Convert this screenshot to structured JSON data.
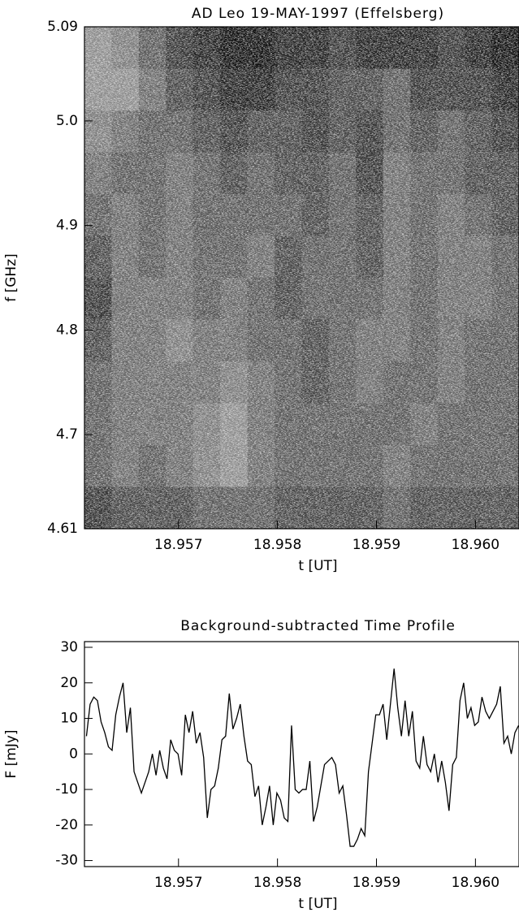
{
  "chart_data": [
    {
      "type": "heatmap",
      "title": "AD Leo 19-MAY-1997 (Effelsberg)",
      "x_label": "t [UT]",
      "y_label": "f [GHz]",
      "xlim": [
        18.95605,
        18.96044
      ],
      "xticks": [
        18.957,
        18.958,
        18.959,
        {
          "value": 18.96,
          "label": "18.960"
        }
      ],
      "ylim": [
        4.61,
        5.09
      ],
      "yticks": [
        4.61,
        4.7,
        4.8,
        4.9,
        {
          "value": 5.0,
          "label": "5.0"
        },
        5.09
      ],
      "z": [
        [
          8,
          7,
          5,
          3,
          2,
          1,
          1,
          2,
          2,
          3,
          2,
          2,
          2,
          3,
          2,
          1
        ],
        [
          8,
          8,
          6,
          4,
          3,
          2,
          2,
          3,
          3,
          4,
          4,
          5,
          3,
          3,
          3,
          2
        ],
        [
          7,
          6,
          5,
          5,
          4,
          3,
          4,
          4,
          3,
          4,
          3,
          5,
          4,
          5,
          4,
          3
        ],
        [
          6,
          5,
          5,
          6,
          5,
          4,
          5,
          4,
          4,
          5,
          3,
          6,
          5,
          5,
          4,
          4
        ],
        [
          5,
          6,
          5,
          6,
          5,
          5,
          5,
          5,
          4,
          5,
          4,
          6,
          5,
          6,
          5,
          4
        ],
        [
          4,
          6,
          5,
          6,
          5,
          5,
          6,
          4,
          5,
          5,
          4,
          6,
          5,
          6,
          6,
          5
        ],
        [
          3,
          6,
          6,
          6,
          5,
          6,
          5,
          4,
          5,
          5,
          5,
          6,
          5,
          6,
          6,
          5
        ],
        [
          4,
          6,
          6,
          7,
          6,
          6,
          5,
          5,
          4,
          5,
          6,
          6,
          5,
          6,
          5,
          5
        ],
        [
          5,
          6,
          6,
          6,
          6,
          7,
          6,
          5,
          4,
          5,
          6,
          5,
          5,
          6,
          5,
          5
        ],
        [
          5,
          6,
          6,
          6,
          7,
          8,
          6,
          5,
          5,
          5,
          5,
          5,
          6,
          5,
          5,
          5
        ],
        [
          5,
          6,
          5,
          6,
          7,
          8,
          6,
          5,
          5,
          5,
          5,
          6,
          5,
          5,
          5,
          5
        ],
        [
          3,
          4,
          4,
          4,
          5,
          5,
          5,
          4,
          4,
          4,
          4,
          5,
          4,
          4,
          4,
          4
        ]
      ]
    },
    {
      "type": "line",
      "title": "Background-subtracted Time Profile",
      "x_label": "t [UT]",
      "y_label": "F [mJy]",
      "xlim": [
        18.95605,
        18.96044
      ],
      "xticks": [
        18.957,
        18.958,
        18.959,
        {
          "value": 18.96,
          "label": "18.960"
        }
      ],
      "ylim": [
        -31.7,
        31.6
      ],
      "yticks": [
        -30,
        -20,
        -10,
        0,
        10,
        20,
        30
      ],
      "x": [
        18.95607,
        18.956107,
        18.956144,
        18.956181,
        18.956218,
        18.956255,
        18.956292,
        18.956329,
        18.956366,
        18.956403,
        18.95644,
        18.956477,
        18.956514,
        18.956551,
        18.956588,
        18.956625,
        18.956662,
        18.956699,
        18.956736,
        18.956773,
        18.95681,
        18.956847,
        18.956884,
        18.956921,
        18.956958,
        18.956995,
        18.957032,
        18.957069,
        18.957106,
        18.957143,
        18.95718,
        18.957217,
        18.957254,
        18.957291,
        18.957328,
        18.957365,
        18.957402,
        18.957439,
        18.957476,
        18.957513,
        18.95755,
        18.957587,
        18.957624,
        18.957661,
        18.957698,
        18.957735,
        18.957772,
        18.957809,
        18.957846,
        18.957883,
        18.95792,
        18.957957,
        18.957994,
        18.958031,
        18.958068,
        18.958105,
        18.958142,
        18.958179,
        18.958216,
        18.958253,
        18.95829,
        18.958327,
        18.958364,
        18.958401,
        18.958438,
        18.958475,
        18.958512,
        18.958549,
        18.958586,
        18.958623,
        18.95866,
        18.958697,
        18.958734,
        18.958771,
        18.958808,
        18.958845,
        18.958882,
        18.958919,
        18.958956,
        18.958993,
        18.95903,
        18.959067,
        18.959104,
        18.959141,
        18.959178,
        18.959215,
        18.959252,
        18.959289,
        18.959326,
        18.959363,
        18.9594,
        18.959437,
        18.959474,
        18.959511,
        18.959548,
        18.959585,
        18.959622,
        18.959659,
        18.959696,
        18.959733,
        18.95977,
        18.959807,
        18.959844,
        18.959881,
        18.959918,
        18.959955,
        18.959992,
        18.960029,
        18.960066,
        18.960103,
        18.96014,
        18.960177,
        18.960214,
        18.960251,
        18.960288,
        18.960325,
        18.960362,
        18.960399,
        18.960436
      ],
      "series": [
        {
          "name": "F",
          "color": "#000000",
          "values": [
            5,
            14,
            16,
            15,
            9,
            6,
            2,
            1,
            11,
            16,
            20,
            6,
            13,
            -5,
            -8,
            -11,
            -8,
            -5,
            0,
            -6,
            1,
            -4,
            -7,
            4,
            1,
            0,
            -6,
            11,
            6,
            12,
            3,
            6,
            -1,
            -18,
            -10,
            -9,
            -4,
            4,
            5,
            17,
            7,
            10,
            14,
            5,
            -2,
            -3,
            -12,
            -9,
            -20,
            -15,
            -9,
            -20,
            -11,
            -13,
            -18,
            -19,
            8,
            -10,
            -11,
            -10,
            -10,
            -2,
            -19,
            -15,
            -9,
            -3,
            -2,
            -1,
            -3,
            -11,
            -9,
            -17,
            -26,
            -26,
            -24,
            -21,
            -23,
            -5,
            3,
            11,
            11,
            14,
            4,
            14,
            24,
            13,
            5,
            15,
            5,
            12,
            -2,
            -4,
            5,
            -3,
            -5,
            0,
            -8,
            -2,
            -8,
            -16,
            -3,
            -1,
            15,
            20,
            10,
            13,
            8,
            9,
            16,
            12,
            10,
            12,
            14,
            19,
            3,
            5,
            0,
            6,
            8
          ]
        }
      ]
    }
  ]
}
